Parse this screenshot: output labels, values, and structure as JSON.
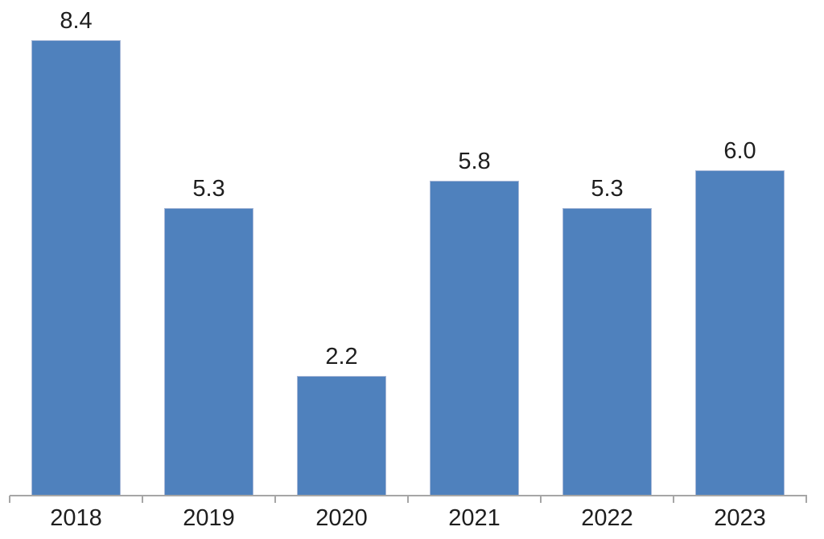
{
  "chart_data": {
    "type": "bar",
    "categories": [
      "2018",
      "2019",
      "2020",
      "2021",
      "2022",
      "2023"
    ],
    "values": [
      8.4,
      5.3,
      2.2,
      5.8,
      5.3,
      6.0
    ],
    "value_labels": [
      "8.4",
      "5.3",
      "2.2",
      "5.8",
      "5.3",
      "6.0"
    ],
    "title": "",
    "xlabel": "",
    "ylabel": "",
    "ylim": [
      0,
      8.4
    ],
    "grid": false,
    "legend": false,
    "y_axis_visible": false,
    "bar_color": "#4f81bd",
    "bar_border_color": "#a9b9d8",
    "axis_line_color": "#a6a6a6",
    "label_color": "#1e1e1e"
  }
}
